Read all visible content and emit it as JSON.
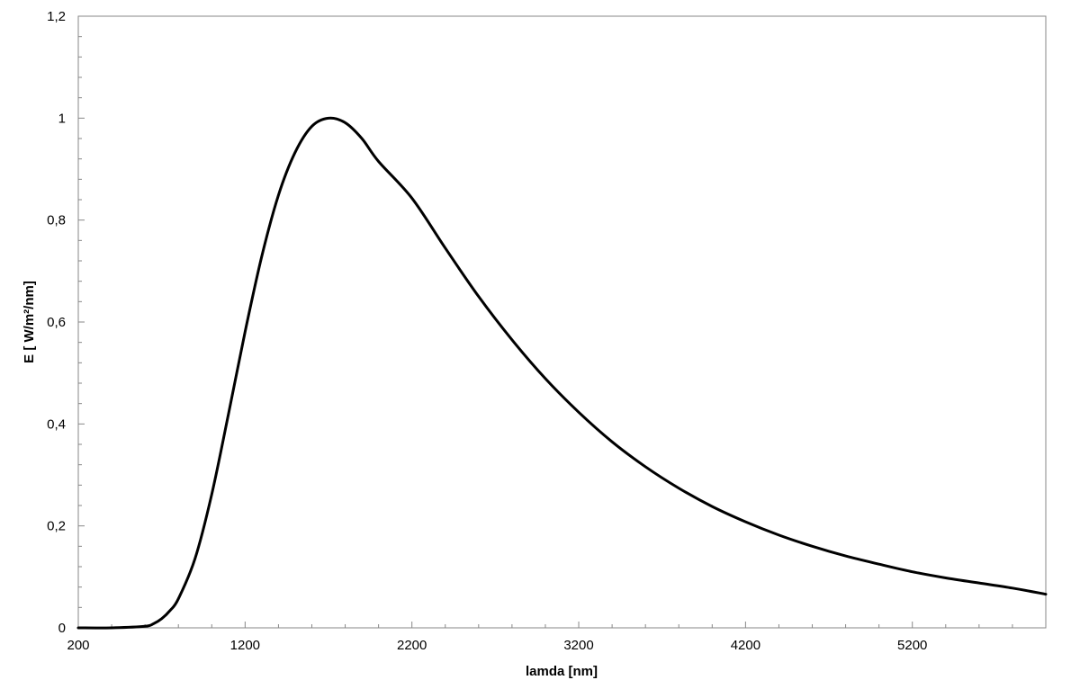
{
  "chart_data": {
    "type": "line",
    "title": "",
    "xlabel": "lamda [nm]",
    "ylabel": "E [ W/m²/nm]",
    "xlim": [
      200,
      6000
    ],
    "ylim": [
      0,
      1.2
    ],
    "grid": false,
    "legend": "none",
    "x_ticks": [
      200,
      1200,
      2200,
      3200,
      4200,
      5200
    ],
    "x_tick_labels": [
      "200",
      "1200",
      "2200",
      "3200",
      "4200",
      "5200"
    ],
    "y_ticks": [
      0,
      0.2,
      0.4,
      0.6,
      0.8,
      1.0,
      1.2
    ],
    "y_tick_labels": [
      "0",
      "0,2",
      "0,4",
      "0,6",
      "0,8",
      "1",
      "1,2"
    ],
    "series": [
      {
        "color": "#000000",
        "x": [
          200,
          400,
          600,
          650,
          700,
          750,
          800,
          900,
          1000,
          1100,
          1200,
          1300,
          1400,
          1500,
          1600,
          1700,
          1800,
          1900,
          2000,
          2200,
          2400,
          2600,
          2800,
          3000,
          3200,
          3400,
          3600,
          3800,
          4000,
          4200,
          4400,
          4600,
          4800,
          5000,
          5200,
          5400,
          5600,
          5800,
          6000
        ],
        "y": [
          0.0,
          0.0,
          0.003,
          0.008,
          0.018,
          0.034,
          0.057,
          0.136,
          0.262,
          0.419,
          0.581,
          0.729,
          0.849,
          0.933,
          0.984,
          1.0,
          0.991,
          0.96,
          0.915,
          0.843,
          0.745,
          0.65,
          0.565,
          0.489,
          0.423,
          0.365,
          0.316,
          0.274,
          0.238,
          0.208,
          0.182,
          0.16,
          0.141,
          0.125,
          0.11,
          0.098,
          0.088,
          0.078,
          0.066
        ]
      }
    ]
  }
}
